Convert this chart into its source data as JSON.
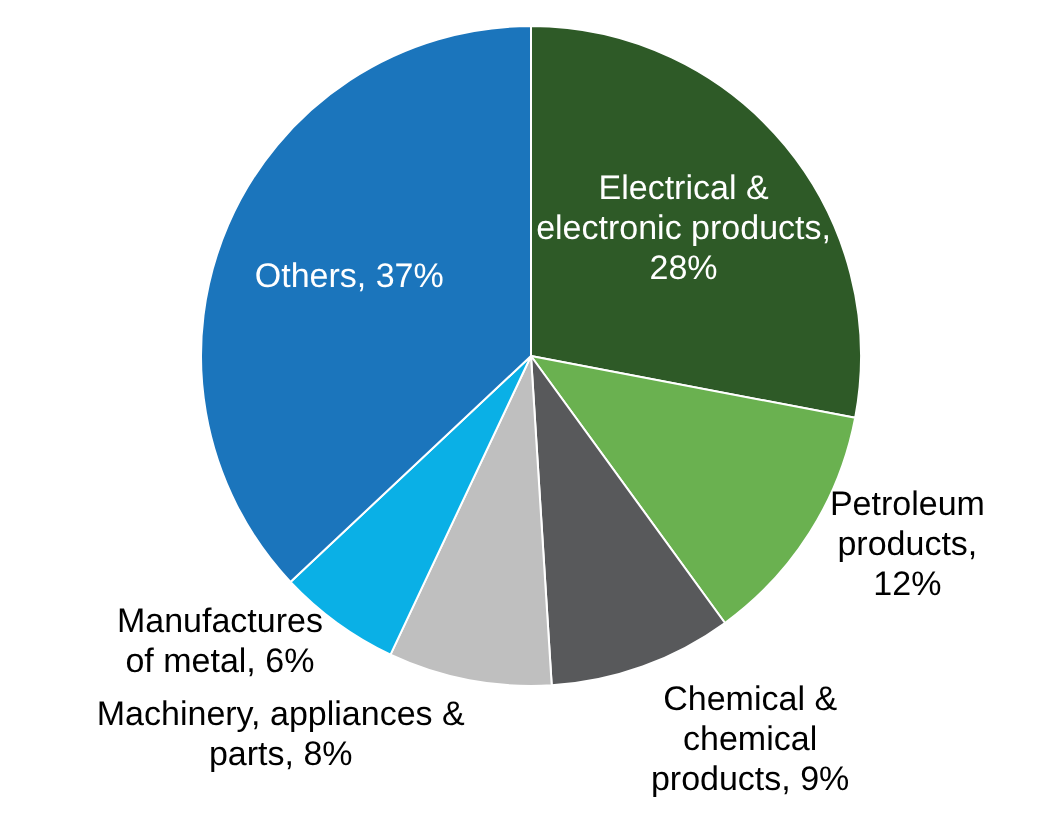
{
  "chart_data": {
    "type": "pie",
    "categories": [
      "Electrical & electronic products",
      "Petroleum products",
      "Chemical & chemical products",
      "Machinery, appliances & parts",
      "Manufactures of metal",
      "Others"
    ],
    "values": [
      28,
      12,
      9,
      8,
      6,
      37
    ],
    "value_labels": [
      ", 28%",
      ", 12%",
      ", 9%",
      ", 8%",
      ", 6%",
      ", 37%"
    ],
    "colors": [
      "#2e5a27",
      "#6ab150",
      "#58595b",
      "#bfbfbf",
      "#0ab0e6",
      "#1b75bc"
    ],
    "legend": false
  }
}
